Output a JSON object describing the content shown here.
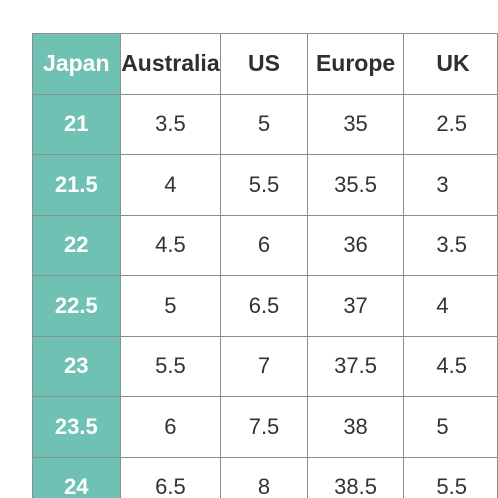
{
  "table": {
    "headers": [
      "Japan",
      "Australia",
      "US",
      "Europe",
      "UK"
    ],
    "rows": [
      [
        "21",
        "3.5",
        "5",
        "35",
        "2.5"
      ],
      [
        "21.5",
        "4",
        "5.5",
        "35.5",
        "3"
      ],
      [
        "22",
        "4.5",
        "6",
        "36",
        "3.5"
      ],
      [
        "22.5",
        "5",
        "6.5",
        "37",
        "4"
      ],
      [
        "23",
        "5.5",
        "7",
        "37.5",
        "4.5"
      ],
      [
        "23.5",
        "6",
        "7.5",
        "38",
        "5"
      ],
      [
        "24",
        "6.5",
        "8",
        "38.5",
        "5.5"
      ]
    ]
  },
  "colors": {
    "header_accent": "#6fc2b3",
    "border": "#8e8e8e",
    "text": "#333333"
  }
}
